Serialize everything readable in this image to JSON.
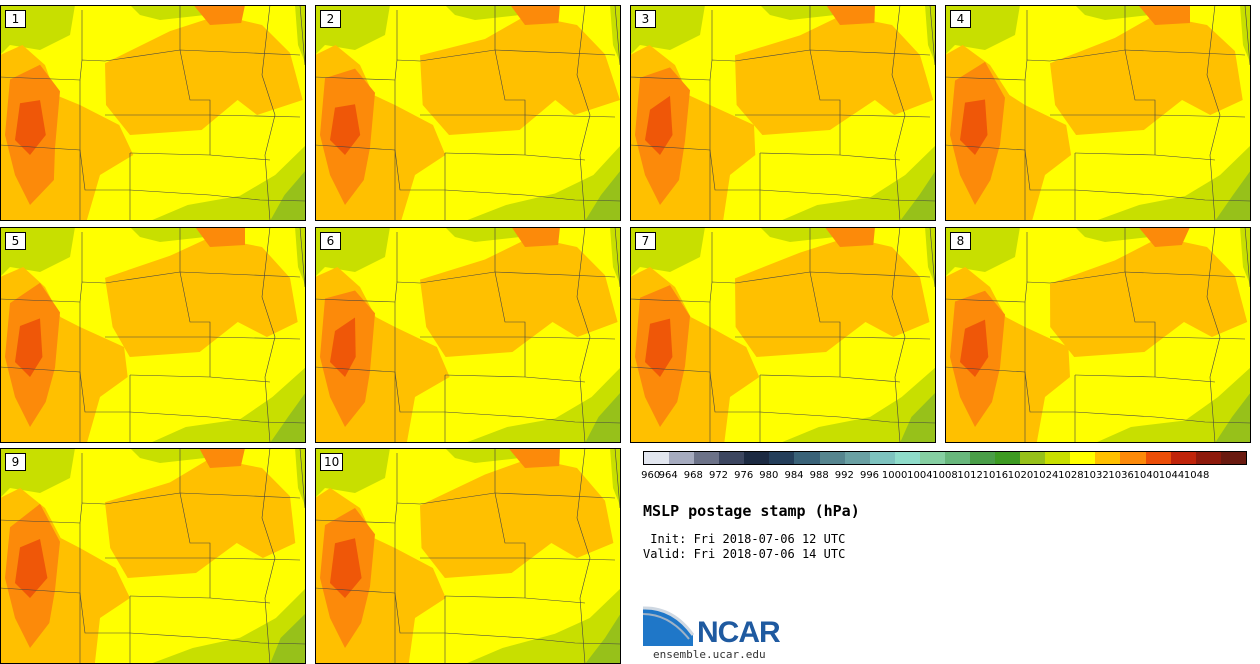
{
  "title": "MSLP postage stamp (hPa)",
  "init_line": " Init: Fri 2018-07-06 12 UTC",
  "valid_line": "Valid: Fri 2018-07-06 14 UTC",
  "logo": {
    "text": "NCAR",
    "url": "ensemble.ucar.edu"
  },
  "panels": [
    {
      "label": "1"
    },
    {
      "label": "2"
    },
    {
      "label": "3"
    },
    {
      "label": "4"
    },
    {
      "label": "5"
    },
    {
      "label": "6"
    },
    {
      "label": "7"
    },
    {
      "label": "8"
    },
    {
      "label": "9"
    },
    {
      "label": "10"
    }
  ],
  "colorbar": {
    "ticks": [
      "960",
      "964",
      "968",
      "972",
      "976",
      "980",
      "984",
      "988",
      "992",
      "996",
      "1000",
      "1004",
      "1008",
      "1012",
      "1016",
      "1020",
      "1024",
      "1028",
      "1032",
      "1036",
      "1040",
      "1044",
      "1048"
    ],
    "colors": [
      "#e2e6ef",
      "#a6abbf",
      "#6c7288",
      "#3c4660",
      "#1c2a42",
      "#243e5a",
      "#3a6278",
      "#56858f",
      "#6aa0a3",
      "#7ec3bf",
      "#8fdcca",
      "#86cfa2",
      "#68b77c",
      "#4a9e48",
      "#3d9b22",
      "#97c11a",
      "#c8df00",
      "#ffff00",
      "#ffc000",
      "#fc8a0a",
      "#ec4e08",
      "#c0240a",
      "#8e1a0c",
      "#6a1a10"
    ]
  },
  "map_colors": {
    "base": "#ffff00",
    "orange": "#ffc000",
    "deep_orange": "#fc8a0a",
    "red": "#ec4e08",
    "green": "#c8df00",
    "dark_green": "#97c11a"
  }
}
